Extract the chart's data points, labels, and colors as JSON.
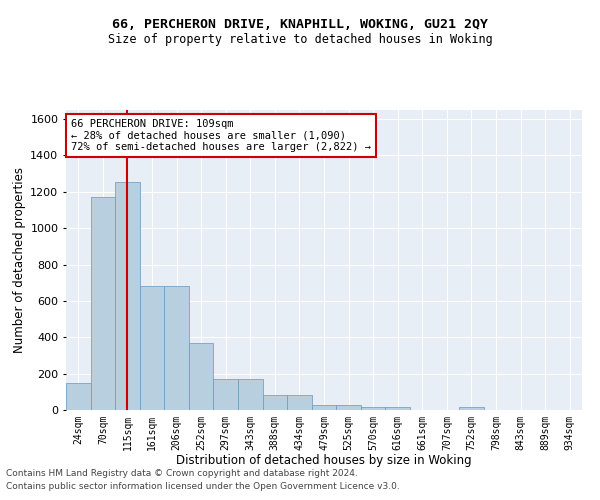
{
  "title1": "66, PERCHERON DRIVE, KNAPHILL, WOKING, GU21 2QY",
  "title2": "Size of property relative to detached houses in Woking",
  "xlabel": "Distribution of detached houses by size in Woking",
  "ylabel": "Number of detached properties",
  "footer1": "Contains HM Land Registry data © Crown copyright and database right 2024.",
  "footer2": "Contains public sector information licensed under the Open Government Licence v3.0.",
  "bar_color": "#b8cfe0",
  "bar_edgecolor": "#6699bb",
  "background_color": "#e8eef5",
  "grid_color": "#ffffff",
  "annotation_box_color": "#cc0000",
  "vline_color": "#cc0000",
  "categories": [
    "24sqm",
    "70sqm",
    "115sqm",
    "161sqm",
    "206sqm",
    "252sqm",
    "297sqm",
    "343sqm",
    "388sqm",
    "434sqm",
    "479sqm",
    "525sqm",
    "570sqm",
    "616sqm",
    "661sqm",
    "707sqm",
    "752sqm",
    "798sqm",
    "843sqm",
    "889sqm",
    "934sqm"
  ],
  "values": [
    150,
    1170,
    1255,
    680,
    680,
    370,
    170,
    170,
    85,
    85,
    25,
    25,
    15,
    15,
    0,
    0,
    18,
    0,
    0,
    0,
    0
  ],
  "ylim": [
    0,
    1650
  ],
  "yticks": [
    0,
    200,
    400,
    600,
    800,
    1000,
    1200,
    1400,
    1600
  ],
  "vline_position": 2.0,
  "annotation_text1": "66 PERCHERON DRIVE: 109sqm",
  "annotation_text2": "← 28% of detached houses are smaller (1,090)",
  "annotation_text3": "72% of semi-detached houses are larger (2,822) →"
}
